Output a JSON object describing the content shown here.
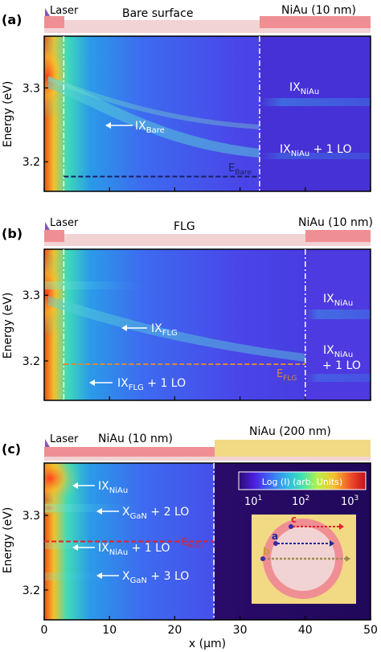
{
  "colors": {
    "bare_strip": "#f2d3d3",
    "niau_strip": "#ef8f94",
    "niau200_strip": "#f2d983",
    "laser": "#8a55b8",
    "bare_line": "#1c2060",
    "flg_line": "#d8893a",
    "niau_line": "#e0232a"
  },
  "xaxis": {
    "label": "x (μm)",
    "ticks": [
      "0",
      "10",
      "20",
      "30",
      "40",
      "50"
    ]
  },
  "chart_data": [
    {
      "type": "heatmap",
      "panel": "(a)",
      "laser_label": "Laser",
      "region_left": "Bare surface",
      "region_right": "NiAu (10 nm)",
      "ylabel": "Energy (eV)",
      "yticks": [
        "3.2",
        "3.3"
      ],
      "xlim": [
        0,
        50
      ],
      "ylim": [
        3.16,
        3.37
      ],
      "boundary_x": 33,
      "laser_x": 3,
      "reference_line": {
        "y": 3.18,
        "x_from": 3,
        "x_to": 33
      },
      "labels": {
        "ix_bare": {
          "main": "IX",
          "sub": "Bare"
        },
        "ix_niau": {
          "main": "IX",
          "sub": "NiAu"
        },
        "ix_niau_lo": {
          "main": "IX",
          "sub": "NiAu",
          "suffix": " + 1 LO"
        },
        "e_bare": {
          "main": "E",
          "sub": "Bare"
        }
      }
    },
    {
      "type": "heatmap",
      "panel": "(b)",
      "laser_label": "Laser",
      "region_left": "FLG",
      "region_right": "NiAu (10 nm)",
      "ylabel": "Energy (eV)",
      "yticks": [
        "3.2",
        "3.3"
      ],
      "xlim": [
        0,
        50
      ],
      "ylim": [
        3.14,
        3.37
      ],
      "boundary_x": 40,
      "laser_x": 3,
      "reference_line": {
        "y": 3.195,
        "x_from": 3,
        "x_to": 40
      },
      "labels": {
        "ix_flg": {
          "main": "IX",
          "sub": "FLG"
        },
        "ix_flg_lo": {
          "main": "IX",
          "sub": "FLG",
          "suffix": " + 1 LO"
        },
        "ix_niau": {
          "main": "IX",
          "sub": "NiAu"
        },
        "ix_niau_lo": {
          "main": "IX",
          "sub": "NiAu",
          "line2": "+ 1 LO"
        },
        "e_flg": {
          "main": "E",
          "sub": "FLG"
        }
      }
    },
    {
      "type": "heatmap",
      "panel": "(c)",
      "laser_label": "Laser",
      "region_left": "NiAu (10 nm)",
      "region_right": "NiAu (200 nm)",
      "ylabel": "Energy (eV)",
      "yticks": [
        "3.2",
        "3.3"
      ],
      "xlim": [
        0,
        50
      ],
      "ylim": [
        3.16,
        3.37
      ],
      "boundary_x": 26,
      "reference_line": {
        "y": 3.265,
        "x_from": 0,
        "x_to": 26
      },
      "labels": {
        "ix_niau": {
          "main": "IX",
          "sub": "NiAu"
        },
        "x_gan_2lo": {
          "main": "X",
          "sub": "GaN",
          "suffix": " + 2 LO"
        },
        "ix_niau_lo": {
          "main": "IX",
          "sub": "NiAu",
          "suffix": " + 1 LO"
        },
        "x_gan_3lo": {
          "main": "X",
          "sub": "GaN",
          "suffix": " + 3 LO"
        },
        "e_niau": {
          "main": "E",
          "sub": "NiAu"
        }
      },
      "colorbar": {
        "title": "Log (I) (arb. Units)",
        "ticks": [
          {
            "base": "10",
            "exp": "1"
          },
          {
            "base": "10",
            "exp": "2"
          },
          {
            "base": "10",
            "exp": "3"
          }
        ],
        "colors": [
          "#2a0a6e",
          "#4b1fe0",
          "#3f6cf5",
          "#2fb6e8",
          "#3fe3b0",
          "#b6f24a",
          "#f7c02c",
          "#f0502a",
          "#c40e1c"
        ]
      },
      "inset_labels": [
        "a",
        "b",
        "c"
      ]
    }
  ]
}
